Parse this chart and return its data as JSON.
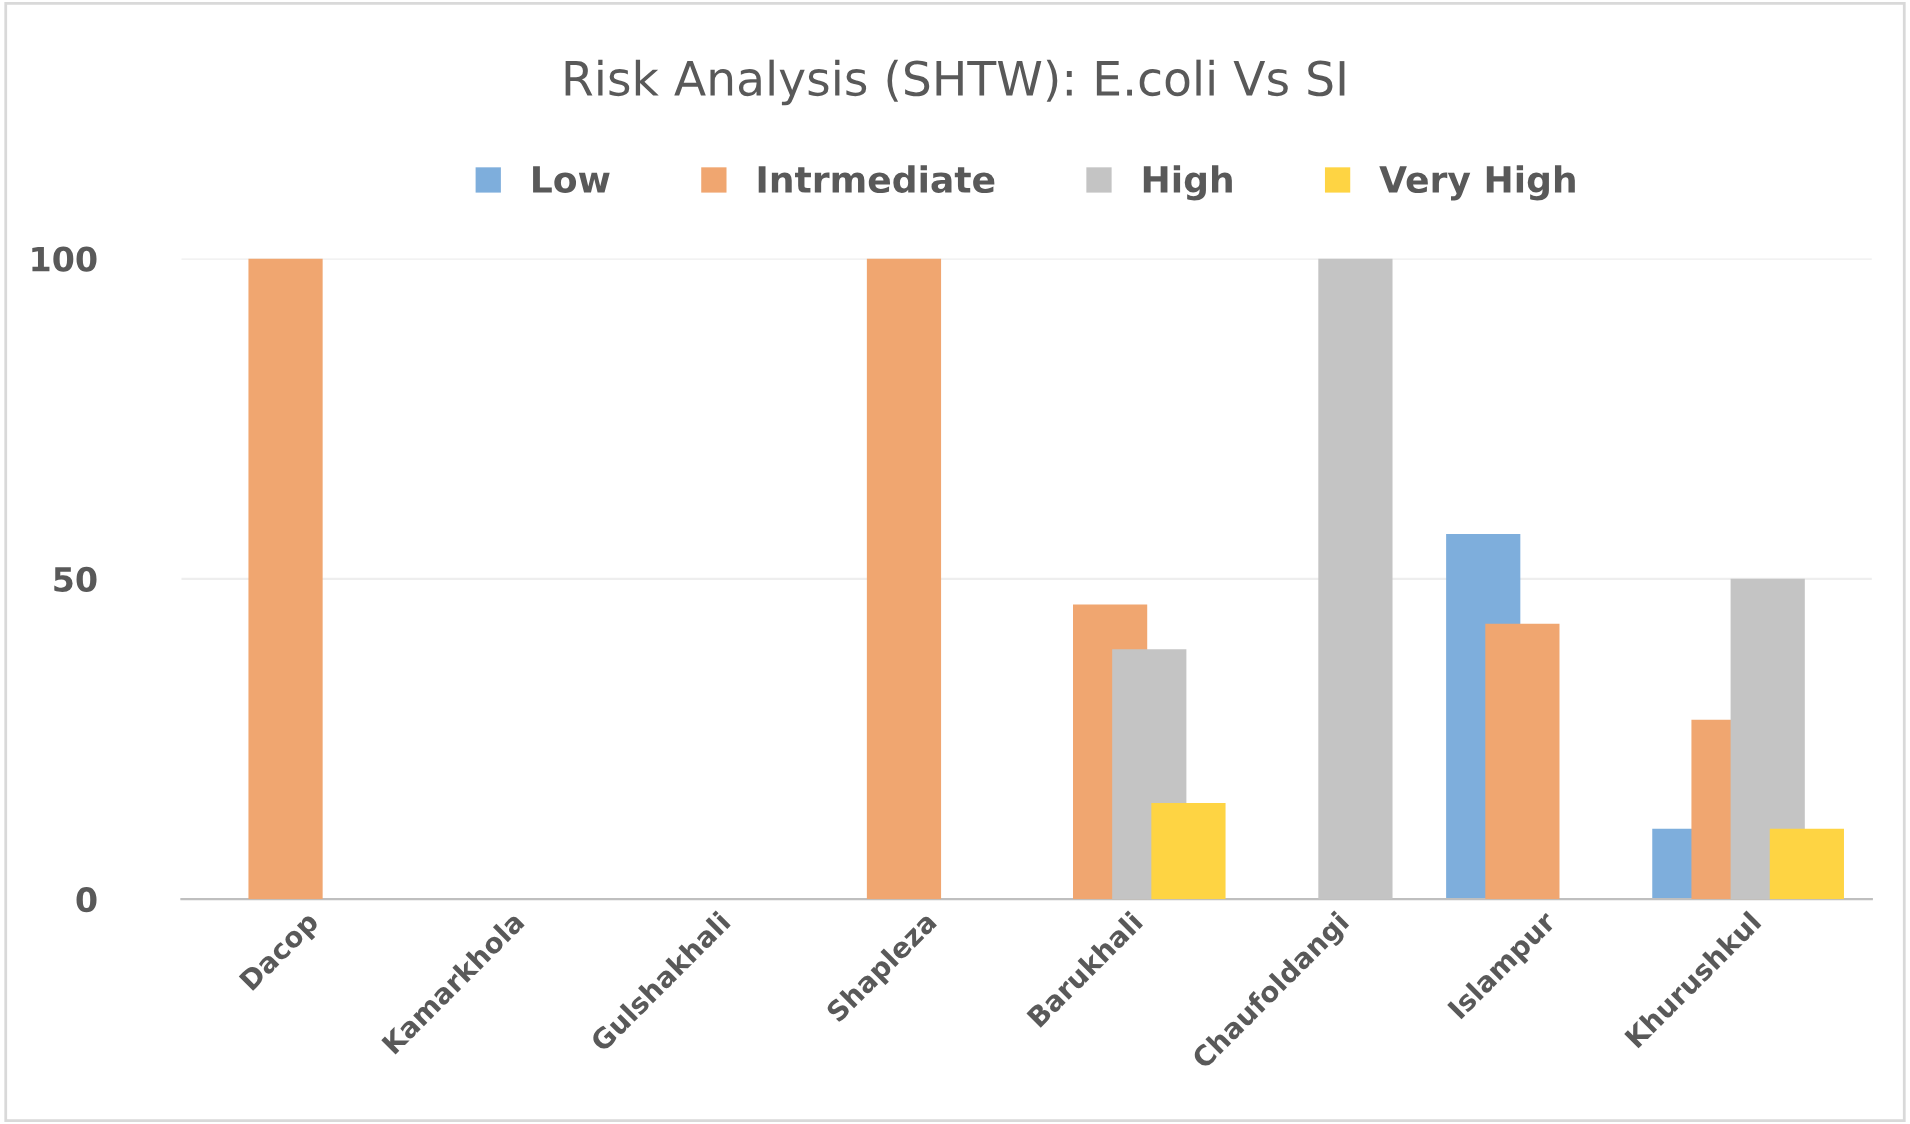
{
  "chart_data": {
    "type": "bar",
    "title": "Risk Analysis (SHTW): E.coli Vs SI",
    "categories": [
      "Dacop",
      "Kamarkhola",
      "Gulshakhali",
      "Shapleza",
      "Barukhali",
      "Chaufoldangi",
      "Islampur",
      "Khurushkul"
    ],
    "series": [
      {
        "name": "Low",
        "color": "#7eaedc",
        "values": [
          null,
          null,
          null,
          null,
          null,
          null,
          57,
          11
        ]
      },
      {
        "name": "Intrmediate",
        "color": "#f0a670",
        "values": [
          100,
          null,
          null,
          100,
          46,
          null,
          43,
          28
        ]
      },
      {
        "name": "High",
        "color": "#c4c4c4",
        "values": [
          null,
          null,
          null,
          null,
          39,
          100,
          null,
          50
        ]
      },
      {
        "name": "Very High",
        "color": "#fed443",
        "values": [
          null,
          null,
          null,
          null,
          15,
          null,
          null,
          11
        ]
      }
    ],
    "ylim": [
      0,
      100
    ],
    "yticks": [
      0,
      50,
      100
    ],
    "grid": "y",
    "legend": "top"
  }
}
